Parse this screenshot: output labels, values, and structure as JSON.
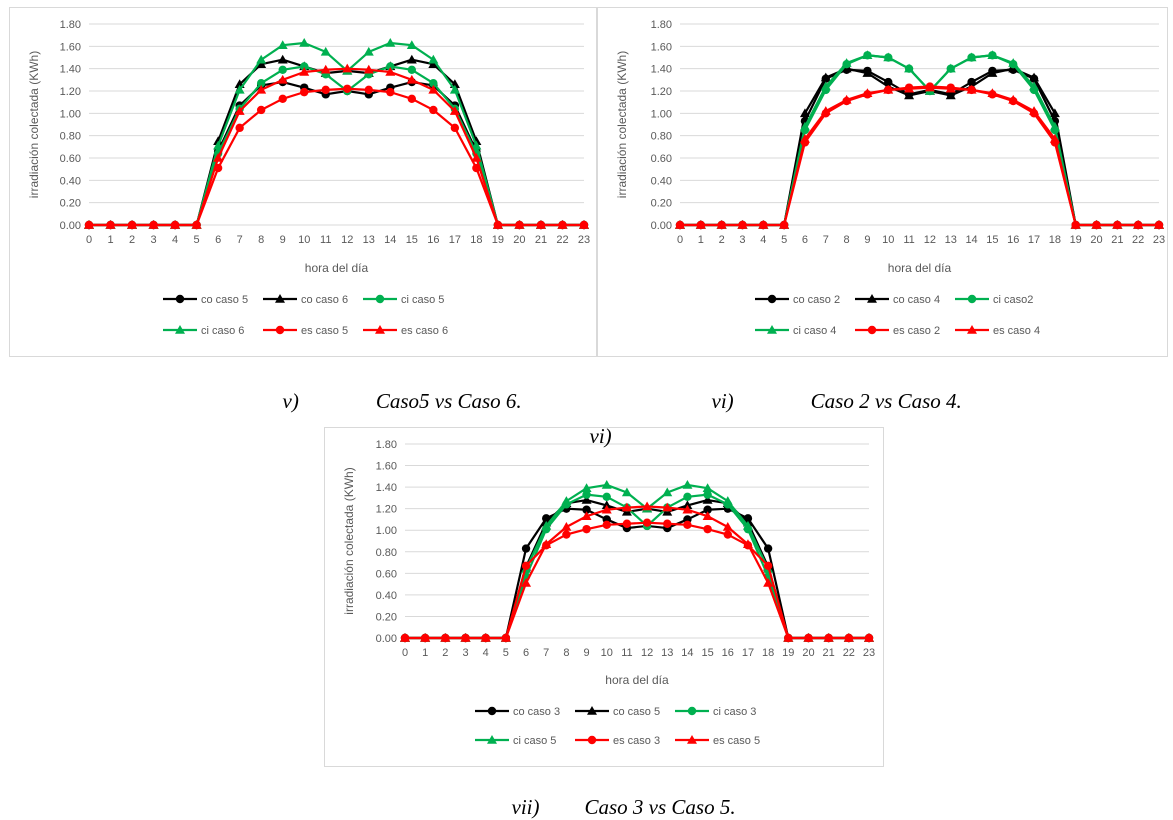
{
  "colors": {
    "co": "#000000",
    "ci": "#00b050",
    "es": "#ff0000",
    "grid": "#d9d9d9",
    "text": "#595959"
  },
  "captions": [
    {
      "id": "v",
      "number": "v)",
      "text": "Caso5 vs Caso 6."
    },
    {
      "id": "vi",
      "number": "vi)",
      "text": "Caso 2 vs Caso 4."
    },
    {
      "id": "vi-extra",
      "number": "vi)",
      "text": ""
    },
    {
      "id": "vii",
      "number": "vii)",
      "text": "Caso 3 vs Caso 5."
    }
  ],
  "chart_data": [
    {
      "type": "line",
      "xlabel": "hora del día",
      "ylabel": "irradiación colectada (KWh)",
      "ylim": [
        0,
        1.8
      ],
      "ytick_step": 0.2,
      "yticks": [
        "0.00",
        "0.20",
        "0.40",
        "0.60",
        "0.80",
        "1.00",
        "1.20",
        "1.40",
        "1.60",
        "1.80"
      ],
      "x": [
        0,
        1,
        2,
        3,
        4,
        5,
        6,
        7,
        8,
        9,
        10,
        11,
        12,
        13,
        14,
        15,
        16,
        17,
        18,
        19,
        20,
        21,
        22,
        23
      ],
      "grid": true,
      "legend": "bottom",
      "series": [
        {
          "name": "co caso 5",
          "color": "#000000",
          "marker": "circle",
          "values": [
            0,
            0,
            0,
            0,
            0,
            0,
            0.66,
            1.07,
            1.25,
            1.28,
            1.23,
            1.17,
            1.2,
            1.17,
            1.23,
            1.28,
            1.25,
            1.07,
            0.66,
            0,
            0,
            0,
            0,
            0
          ]
        },
        {
          "name": "co caso 6",
          "color": "#000000",
          "marker": "triangle",
          "values": [
            0,
            0,
            0,
            0,
            0,
            0,
            0.75,
            1.26,
            1.44,
            1.48,
            1.42,
            1.36,
            1.38,
            1.36,
            1.42,
            1.48,
            1.44,
            1.26,
            0.75,
            0,
            0,
            0,
            0,
            0
          ]
        },
        {
          "name": "ci caso 5",
          "color": "#00b050",
          "marker": "circle",
          "values": [
            0,
            0,
            0,
            0,
            0,
            0,
            0.64,
            1.04,
            1.27,
            1.39,
            1.42,
            1.35,
            1.2,
            1.35,
            1.42,
            1.39,
            1.27,
            1.04,
            0.64,
            0,
            0,
            0,
            0,
            0
          ]
        },
        {
          "name": "ci caso 6",
          "color": "#00b050",
          "marker": "triangle",
          "values": [
            0,
            0,
            0,
            0,
            0,
            0,
            0.71,
            1.21,
            1.48,
            1.61,
            1.63,
            1.55,
            1.38,
            1.55,
            1.63,
            1.61,
            1.48,
            1.21,
            0.71,
            0,
            0,
            0,
            0,
            0
          ]
        },
        {
          "name": "es caso 5",
          "color": "#ff0000",
          "marker": "circle",
          "values": [
            0,
            0,
            0,
            0,
            0,
            0,
            0.51,
            0.87,
            1.03,
            1.13,
            1.19,
            1.21,
            1.22,
            1.21,
            1.19,
            1.13,
            1.03,
            0.87,
            0.51,
            0,
            0,
            0,
            0,
            0
          ]
        },
        {
          "name": "es caso 6",
          "color": "#ff0000",
          "marker": "triangle",
          "values": [
            0,
            0,
            0,
            0,
            0,
            0,
            0.6,
            1.02,
            1.21,
            1.3,
            1.37,
            1.39,
            1.4,
            1.39,
            1.37,
            1.3,
            1.21,
            1.02,
            0.6,
            0,
            0,
            0,
            0,
            0
          ]
        }
      ]
    },
    {
      "type": "line",
      "xlabel": "hora del día",
      "ylabel": "irradiación colectada (KWh)",
      "ylim": [
        0,
        1.8
      ],
      "ytick_step": 0.2,
      "yticks": [
        "0.00",
        "0.20",
        "0.40",
        "0.60",
        "0.80",
        "1.00",
        "1.20",
        "1.40",
        "1.60",
        "1.80"
      ],
      "x": [
        0,
        1,
        2,
        3,
        4,
        5,
        6,
        7,
        8,
        9,
        10,
        11,
        12,
        13,
        14,
        15,
        16,
        17,
        18,
        19,
        20,
        21,
        22,
        23
      ],
      "grid": true,
      "legend": "bottom",
      "series": [
        {
          "name": "co caso 2",
          "color": "#000000",
          "marker": "circle",
          "values": [
            0,
            0,
            0,
            0,
            0,
            0,
            0.93,
            1.31,
            1.39,
            1.38,
            1.28,
            1.17,
            1.21,
            1.17,
            1.28,
            1.38,
            1.39,
            1.31,
            0.93,
            0,
            0,
            0,
            0,
            0
          ]
        },
        {
          "name": "co caso 4",
          "color": "#000000",
          "marker": "triangle",
          "values": [
            0,
            0,
            0,
            0,
            0,
            0,
            1.0,
            1.32,
            1.4,
            1.36,
            1.24,
            1.16,
            1.2,
            1.16,
            1.24,
            1.36,
            1.4,
            1.32,
            1.0,
            0,
            0,
            0,
            0,
            0
          ]
        },
        {
          "name": "ci caso2",
          "color": "#00b050",
          "marker": "circle",
          "values": [
            0,
            0,
            0,
            0,
            0,
            0,
            0.85,
            1.21,
            1.44,
            1.52,
            1.5,
            1.4,
            1.2,
            1.4,
            1.5,
            1.52,
            1.44,
            1.21,
            0.85,
            0,
            0,
            0,
            0,
            0
          ]
        },
        {
          "name": "ci caso 4",
          "color": "#00b050",
          "marker": "triangle",
          "values": [
            0,
            0,
            0,
            0,
            0,
            0,
            0.88,
            1.24,
            1.45,
            1.52,
            1.5,
            1.4,
            1.2,
            1.4,
            1.5,
            1.52,
            1.45,
            1.24,
            0.88,
            0,
            0,
            0,
            0,
            0
          ]
        },
        {
          "name": "es caso 2",
          "color": "#ff0000",
          "marker": "circle",
          "values": [
            0,
            0,
            0,
            0,
            0,
            0,
            0.74,
            1.0,
            1.11,
            1.17,
            1.21,
            1.23,
            1.24,
            1.23,
            1.21,
            1.17,
            1.11,
            1.0,
            0.74,
            0,
            0,
            0,
            0,
            0
          ]
        },
        {
          "name": "es caso 4",
          "color": "#ff0000",
          "marker": "triangle",
          "values": [
            0,
            0,
            0,
            0,
            0,
            0,
            0.77,
            1.02,
            1.12,
            1.18,
            1.21,
            1.22,
            1.23,
            1.22,
            1.21,
            1.18,
            1.12,
            1.02,
            0.77,
            0,
            0,
            0,
            0,
            0
          ]
        }
      ]
    },
    {
      "type": "line",
      "xlabel": "hora del día",
      "ylabel": "irradiación colectada (KWh)",
      "ylim": [
        0,
        1.8
      ],
      "ytick_step": 0.2,
      "yticks": [
        "0.00",
        "0.20",
        "0.40",
        "0.60",
        "0.80",
        "1.00",
        "1.20",
        "1.40",
        "1.60",
        "1.80"
      ],
      "x": [
        0,
        1,
        2,
        3,
        4,
        5,
        6,
        7,
        8,
        9,
        10,
        11,
        12,
        13,
        14,
        15,
        16,
        17,
        18,
        19,
        20,
        21,
        22,
        23
      ],
      "grid": true,
      "legend": "bottom",
      "series": [
        {
          "name": "co caso 3",
          "color": "#000000",
          "marker": "circle",
          "values": [
            0,
            0,
            0,
            0,
            0,
            0,
            0.83,
            1.11,
            1.2,
            1.19,
            1.1,
            1.02,
            1.04,
            1.02,
            1.1,
            1.19,
            1.2,
            1.11,
            0.83,
            0,
            0,
            0,
            0,
            0
          ]
        },
        {
          "name": "co caso 5",
          "color": "#000000",
          "marker": "triangle",
          "values": [
            0,
            0,
            0,
            0,
            0,
            0,
            0.66,
            1.07,
            1.25,
            1.28,
            1.23,
            1.17,
            1.2,
            1.17,
            1.23,
            1.28,
            1.25,
            1.07,
            0.66,
            0,
            0,
            0,
            0,
            0
          ]
        },
        {
          "name": "ci caso 3",
          "color": "#00b050",
          "marker": "circle",
          "values": [
            0,
            0,
            0,
            0,
            0,
            0,
            0.57,
            1.01,
            1.24,
            1.33,
            1.31,
            1.21,
            1.04,
            1.21,
            1.31,
            1.33,
            1.24,
            1.01,
            0.57,
            0,
            0,
            0,
            0,
            0
          ]
        },
        {
          "name": "ci caso 5",
          "color": "#00b050",
          "marker": "triangle",
          "values": [
            0,
            0,
            0,
            0,
            0,
            0,
            0.64,
            1.04,
            1.27,
            1.39,
            1.42,
            1.35,
            1.2,
            1.35,
            1.42,
            1.39,
            1.27,
            1.04,
            0.64,
            0,
            0,
            0,
            0,
            0
          ]
        },
        {
          "name": "es caso 3",
          "color": "#ff0000",
          "marker": "circle",
          "values": [
            0,
            0,
            0,
            0,
            0,
            0,
            0.67,
            0.86,
            0.96,
            1.01,
            1.05,
            1.06,
            1.07,
            1.06,
            1.05,
            1.01,
            0.96,
            0.86,
            0.67,
            0,
            0,
            0,
            0,
            0
          ]
        },
        {
          "name": "es caso 5",
          "color": "#ff0000",
          "marker": "triangle",
          "values": [
            0,
            0,
            0,
            0,
            0,
            0,
            0.51,
            0.87,
            1.03,
            1.13,
            1.19,
            1.21,
            1.22,
            1.21,
            1.19,
            1.13,
            1.03,
            0.87,
            0.51,
            0,
            0,
            0,
            0,
            0
          ]
        }
      ]
    }
  ]
}
